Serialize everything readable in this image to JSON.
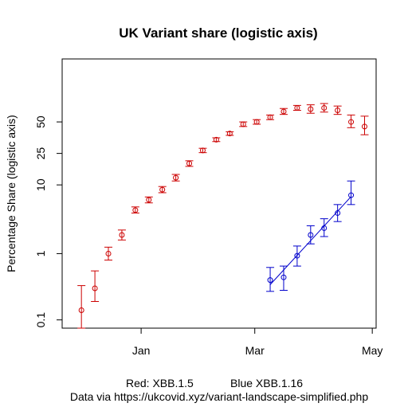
{
  "chart_data": {
    "type": "scatter",
    "title": "UK Variant share (logistic axis)",
    "xlabel": "",
    "ylabel": "Percentage Share (logistic axis)",
    "y_scale": "logit",
    "y_ticks": [
      "0.1",
      "1",
      "10",
      "25",
      "50"
    ],
    "y_tick_values": [
      0.1,
      1,
      10,
      25,
      50
    ],
    "x_ticks": [
      "Jan",
      "Mar",
      "May"
    ],
    "x_tick_values": [
      "2023-01-01",
      "2023-03-01",
      "2023-05-01"
    ],
    "xlim": [
      "2022-11-21",
      "2023-05-03"
    ],
    "ylim": [
      0.075,
      90
    ],
    "grid": false,
    "legend": false,
    "notes": [
      "Red: XBB.1.5",
      "Blue XBB.1.16"
    ],
    "source": "Data via https://ukcovid.xyz/variant-landscape-simplified.php",
    "series": [
      {
        "color": "#cc0000",
        "fit_line": false,
        "points": [
          {
            "x": "2022-12-01",
            "y": 0.14,
            "lo": 0.075,
            "hi": 0.33
          },
          {
            "x": "2022-12-08",
            "y": 0.3,
            "lo": 0.19,
            "hi": 0.55
          },
          {
            "x": "2022-12-15",
            "y": 1.0,
            "lo": 0.8,
            "hi": 1.25
          },
          {
            "x": "2022-12-22",
            "y": 1.9,
            "lo": 1.6,
            "hi": 2.25
          },
          {
            "x": "2022-12-29",
            "y": 4.4,
            "lo": 4.0,
            "hi": 4.9
          },
          {
            "x": "2023-01-05",
            "y": 6.2,
            "lo": 5.6,
            "hi": 6.8
          },
          {
            "x": "2023-01-12",
            "y": 8.6,
            "lo": 7.8,
            "hi": 9.5
          },
          {
            "x": "2023-01-19",
            "y": 12.5,
            "lo": 11.3,
            "hi": 13.8
          },
          {
            "x": "2023-01-26",
            "y": 19,
            "lo": 17.5,
            "hi": 20.5
          },
          {
            "x": "2023-02-02",
            "y": 27,
            "lo": 25.5,
            "hi": 28.5
          },
          {
            "x": "2023-02-09",
            "y": 35,
            "lo": 33.5,
            "hi": 36.5
          },
          {
            "x": "2023-02-16",
            "y": 40,
            "lo": 38.5,
            "hi": 41.5
          },
          {
            "x": "2023-02-23",
            "y": 48,
            "lo": 46,
            "hi": 50
          },
          {
            "x": "2023-03-02",
            "y": 50,
            "lo": 48,
            "hi": 52
          },
          {
            "x": "2023-03-09",
            "y": 54,
            "lo": 52,
            "hi": 56
          },
          {
            "x": "2023-03-16",
            "y": 59,
            "lo": 56.5,
            "hi": 61.5
          },
          {
            "x": "2023-03-23",
            "y": 62,
            "lo": 60,
            "hi": 64
          },
          {
            "x": "2023-03-30",
            "y": 61,
            "lo": 57.5,
            "hi": 64.5
          },
          {
            "x": "2023-04-06",
            "y": 62,
            "lo": 58.5,
            "hi": 65.5
          },
          {
            "x": "2023-04-13",
            "y": 60,
            "lo": 56.5,
            "hi": 63.5
          },
          {
            "x": "2023-04-20",
            "y": 50,
            "lo": 45,
            "hi": 56
          },
          {
            "x": "2023-04-27",
            "y": 46,
            "lo": 39,
            "hi": 55
          }
        ]
      },
      {
        "color": "#0000cc",
        "fit_line": true,
        "points": [
          {
            "x": "2023-03-09",
            "y": 0.4,
            "lo": 0.27,
            "hi": 0.62
          },
          {
            "x": "2023-03-16",
            "y": 0.44,
            "lo": 0.28,
            "hi": 0.65
          },
          {
            "x": "2023-03-23",
            "y": 0.93,
            "lo": 0.65,
            "hi": 1.3
          },
          {
            "x": "2023-03-30",
            "y": 1.9,
            "lo": 1.4,
            "hi": 2.6
          },
          {
            "x": "2023-04-06",
            "y": 2.4,
            "lo": 1.8,
            "hi": 3.3
          },
          {
            "x": "2023-04-13",
            "y": 4.0,
            "lo": 3.0,
            "hi": 5.3
          },
          {
            "x": "2023-04-20",
            "y": 7.2,
            "lo": 5.3,
            "hi": 11.3
          }
        ]
      }
    ]
  }
}
